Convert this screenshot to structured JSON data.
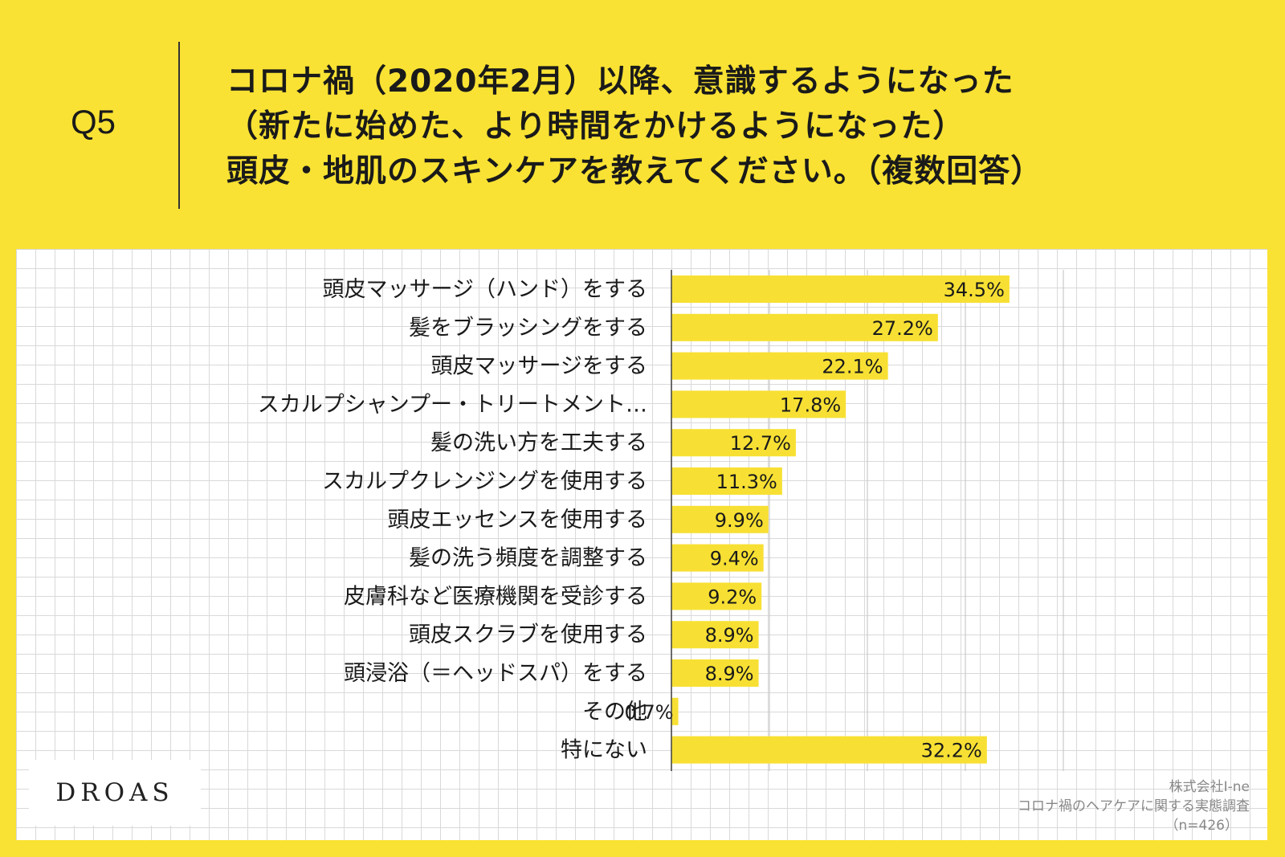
{
  "question": {
    "number": "Q5",
    "lines": [
      "コロナ禍（2020年2月）以降、意識するようになった",
      "（新たに始めた、より時間をかけるようになった）",
      "頭皮・地肌のスキンケアを教えてください。（複数回答）"
    ]
  },
  "brand": {
    "logo": "DROAS"
  },
  "source": {
    "company": "株式会社I-ne",
    "survey": "コロナ禍のヘアケアに関する実態調査",
    "sample": "（n=426）"
  },
  "colors": {
    "bar": "#f7e033",
    "background": "#f9e233"
  },
  "chart_data": {
    "type": "bar",
    "orientation": "horizontal",
    "title": "",
    "xlabel": "",
    "ylabel": "",
    "xlim": [
      0,
      40
    ],
    "unit": "%",
    "categories": [
      "頭皮マッサージ（ハンド）をする",
      "髪をブラッシングをする",
      "頭皮マッサージをする",
      "スカルプシャンプー・トリートメント…",
      "髪の洗い方を工夫する",
      "スカルプクレンジングを使用する",
      "頭皮エッセンスを使用する",
      "髪の洗う頻度を調整する",
      "皮膚科など医療機関を受診する",
      "頭皮スクラブを使用する",
      "頭浸浴（＝ヘッドスパ）をする",
      "その他",
      "特にない"
    ],
    "values": [
      34.5,
      27.2,
      22.1,
      17.8,
      12.7,
      11.3,
      9.9,
      9.4,
      9.2,
      8.9,
      8.9,
      0.7,
      32.2
    ],
    "data_labels": [
      "34.5%",
      "27.2%",
      "22.1%",
      "17.8%",
      "12.7%",
      "11.3%",
      "9.9%",
      "9.4%",
      "9.2%",
      "8.9%",
      "8.9%",
      "0.7%",
      "32.2%"
    ]
  }
}
